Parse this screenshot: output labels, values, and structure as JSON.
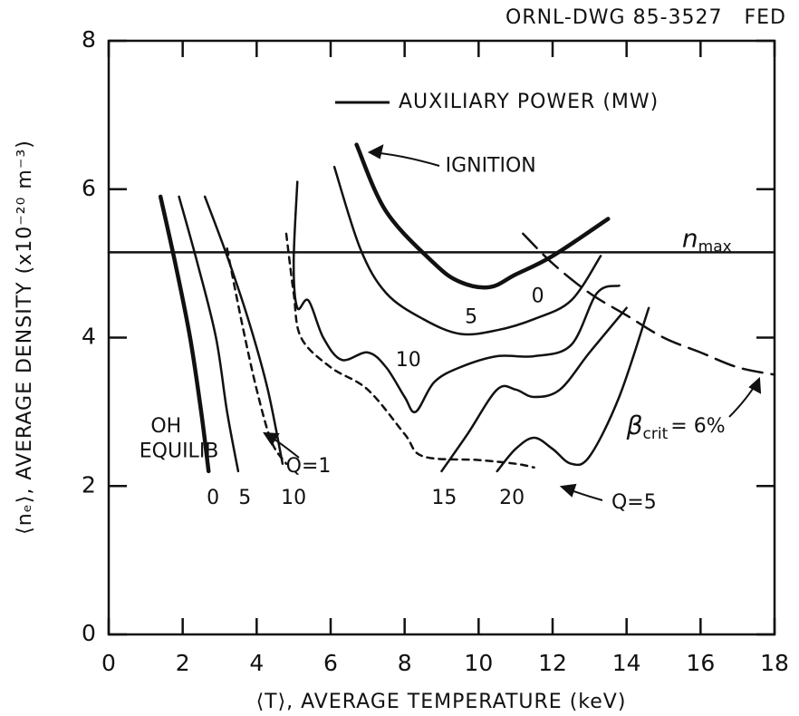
{
  "chart_data": {
    "type": "line",
    "header": "ORNL-DWG 85-3527   FED",
    "legend": "AUXILIARY POWER (MW)",
    "x_label": "⟨T⟩, AVERAGE TEMPERATURE (keV)",
    "y_label": "⟨nₑ⟩, AVERAGE DENSITY (x10⁻²⁰ m⁻³)",
    "xlim": [
      0,
      18
    ],
    "ylim": [
      0,
      8
    ],
    "xticks": [
      0,
      2,
      4,
      6,
      8,
      10,
      12,
      14,
      16,
      18
    ],
    "yticks": [
      0,
      2,
      4,
      6,
      8
    ],
    "series": [
      {
        "style": "thick",
        "x": [
          1.4,
          1.8,
          2.2,
          2.5,
          2.7
        ],
        "values": [
          5.9,
          5.0,
          4.0,
          3.0,
          2.2
        ]
      },
      {
        "style": "solid",
        "x": [
          1.9,
          2.4,
          2.9,
          3.2,
          3.5
        ],
        "values": [
          5.9,
          5.0,
          4.0,
          3.0,
          2.2
        ]
      },
      {
        "style": "solid",
        "x": [
          2.6,
          3.2,
          3.8,
          4.3,
          4.7
        ],
        "values": [
          5.9,
          5.1,
          4.2,
          3.3,
          2.3
        ]
      },
      {
        "style": "dashed",
        "x": [
          3.2,
          3.6,
          4.0,
          4.4,
          4.8
        ],
        "values": [
          5.2,
          4.2,
          3.3,
          2.6,
          2.3
        ]
      },
      {
        "style": "dashed",
        "x": [
          4.8,
          5.0,
          5.2,
          6.0,
          7.0,
          8.0,
          8.5,
          10.0,
          11.0,
          11.5
        ],
        "values": [
          5.4,
          4.6,
          4.0,
          3.6,
          3.3,
          2.7,
          2.4,
          2.35,
          2.3,
          2.25
        ]
      },
      {
        "style": "thick",
        "x": [
          6.7,
          7.5,
          8.8,
          9.5,
          10.3,
          11.0,
          12.0,
          13.5
        ],
        "values": [
          6.6,
          5.7,
          5.0,
          4.75,
          4.68,
          4.85,
          5.1,
          5.6
        ]
      },
      {
        "style": "solid",
        "x": [
          6.1,
          6.8,
          7.5,
          8.5,
          9.5,
          10.5,
          11.5,
          12.5,
          13.3
        ],
        "values": [
          6.3,
          5.2,
          4.6,
          4.25,
          4.05,
          4.1,
          4.25,
          4.5,
          5.1
        ]
      },
      {
        "style": "solid",
        "x": [
          5.1,
          5.0,
          5.1,
          5.4,
          5.8,
          6.3,
          7.0,
          7.5,
          8.0,
          8.3,
          8.8,
          9.5,
          10.5,
          11.5,
          12.5,
          13.2,
          13.8
        ],
        "values": [
          6.1,
          5.0,
          4.4,
          4.5,
          4.0,
          3.7,
          3.8,
          3.6,
          3.2,
          3.0,
          3.4,
          3.6,
          3.75,
          3.75,
          3.9,
          4.6,
          4.7
        ]
      },
      {
        "style": "solid",
        "x": [
          9.0,
          9.7,
          10.5,
          11.0,
          11.5,
          12.2,
          13.0,
          14.0
        ],
        "values": [
          2.2,
          2.7,
          3.3,
          3.3,
          3.2,
          3.3,
          3.8,
          4.4
        ]
      },
      {
        "style": "solid",
        "x": [
          10.5,
          11.0,
          11.5,
          12.0,
          12.5,
          13.0,
          13.8,
          14.6
        ],
        "values": [
          2.2,
          2.5,
          2.65,
          2.5,
          2.3,
          2.4,
          3.2,
          4.4
        ]
      },
      {
        "style": "longdash",
        "x": [
          11.2,
          12.0,
          13.0,
          14.0,
          15.0,
          16.0,
          17.0,
          18.0
        ],
        "values": [
          5.4,
          5.0,
          4.6,
          4.3,
          4.0,
          3.8,
          3.6,
          3.5
        ]
      },
      {
        "style": "solid",
        "x": [
          0,
          18
        ],
        "values": [
          5.15,
          5.15
        ]
      }
    ],
    "annotations": [
      {
        "text": "IGNITION",
        "x": 9.1,
        "y": 6.31,
        "anchor": "start"
      },
      {
        "text": "0",
        "x": 11.6,
        "y": 4.55,
        "anchor": "middle"
      },
      {
        "text": "5",
        "x": 9.8,
        "y": 4.27,
        "anchor": "middle"
      },
      {
        "text": "10",
        "x": 8.1,
        "y": 3.69,
        "anchor": "middle"
      },
      {
        "text": "OH",
        "x": 1.55,
        "y": 2.8,
        "anchor": "middle"
      },
      {
        "text": "EQUILIB",
        "x": 1.9,
        "y": 2.46,
        "anchor": "middle"
      },
      {
        "text": "0",
        "x": 2.82,
        "y": 1.83,
        "anchor": "middle"
      },
      {
        "text": "5",
        "x": 3.68,
        "y": 1.83,
        "anchor": "middle"
      },
      {
        "text": "10",
        "x": 5.0,
        "y": 1.83,
        "anchor": "middle"
      },
      {
        "text": "15",
        "x": 9.07,
        "y": 1.83,
        "anchor": "middle"
      },
      {
        "text": "20",
        "x": 10.9,
        "y": 1.83,
        "anchor": "middle"
      },
      {
        "text": "Q=1",
        "x": 5.4,
        "y": 2.26,
        "anchor": "middle"
      },
      {
        "text": "Q=5",
        "x": 14.2,
        "y": 1.77,
        "anchor": "middle"
      },
      {
        "text": "β",
        "sub": "crit",
        "after": "= 6%",
        "x": 14.0,
        "y": 2.8,
        "anchor": "start"
      },
      {
        "text": "n",
        "sub": "max",
        "x": 15.5,
        "y": 5.32,
        "anchor": "start"
      }
    ]
  }
}
